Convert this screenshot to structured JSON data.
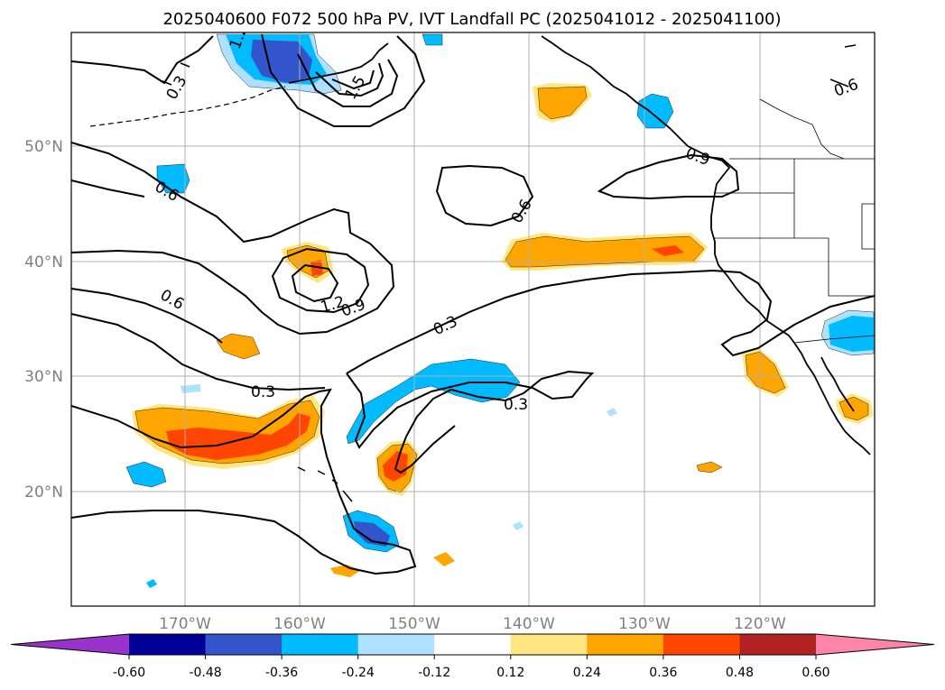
{
  "title": "2025040600 F072 500 hPa PV, IVT Landfall PC (2025041012 - 2025041100)",
  "axes": {
    "lon_ticks": [
      "170°W",
      "160°W",
      "150°W",
      "140°W",
      "130°W",
      "120°W"
    ],
    "lat_ticks": [
      "50°N",
      "40°N",
      "30°N",
      "20°N"
    ]
  },
  "colorbar": {
    "colors": [
      "#9933cc",
      "#000099",
      "#3355cc",
      "#00bbff",
      "#aee0ff",
      "#ffffff",
      "#ffe680",
      "#ffa500",
      "#ff4500",
      "#b22222",
      "#ff85a8"
    ],
    "labels": [
      "-0.60",
      "-0.48",
      "-0.36",
      "-0.24",
      "-0.12",
      "0.12",
      "0.24",
      "0.36",
      "0.48",
      "0.60"
    ]
  },
  "contour_labels": [
    "0.3",
    "0.6",
    "1.2",
    "1.5",
    "0.9",
    "0.6",
    "0.6",
    "1.2",
    "0.9",
    "0.3",
    "0.3",
    "0.3",
    "0.6",
    "0.3",
    "0.6"
  ]
}
